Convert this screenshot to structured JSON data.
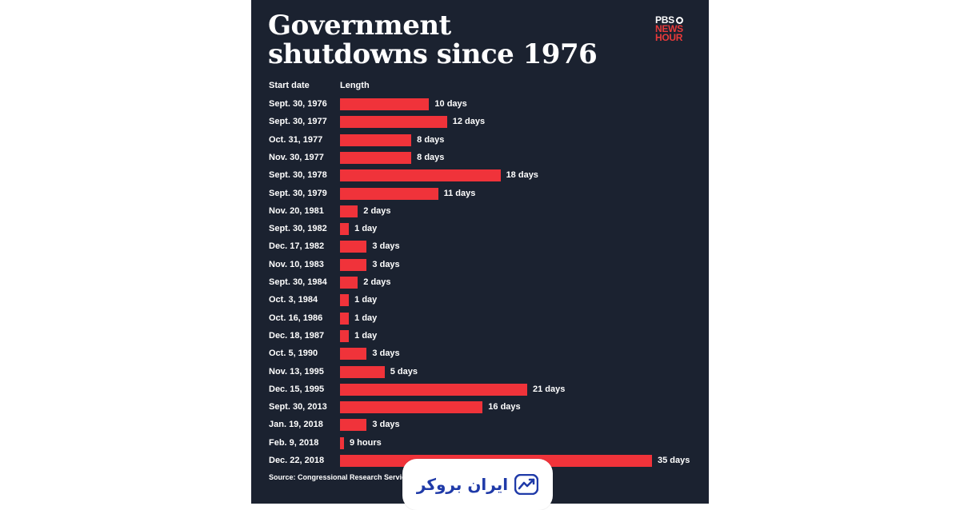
{
  "chart_data": {
    "type": "bar",
    "orientation": "horizontal",
    "title": "Government shutdowns since 1976",
    "column_headers": {
      "category": "Start date",
      "value": "Length"
    },
    "categories": [
      "Sept. 30, 1976",
      "Sept. 30, 1977",
      "Oct. 31, 1977",
      "Nov. 30, 1977",
      "Sept. 30, 1978",
      "Sept. 30, 1979",
      "Nov. 20, 1981",
      "Sept. 30, 1982",
      "Dec. 17, 1982",
      "Nov. 10, 1983",
      "Sept. 30, 1984",
      "Oct. 3, 1984",
      "Oct. 16, 1986",
      "Dec. 18, 1987",
      "Oct. 5, 1990",
      "Nov. 13, 1995",
      "Dec. 15, 1995",
      "Sept. 30, 2013",
      "Jan. 19, 2018",
      "Feb. 9, 2018",
      "Dec. 22, 2018"
    ],
    "values": [
      10,
      12,
      8,
      8,
      18,
      11,
      2,
      1,
      3,
      3,
      2,
      1,
      1,
      1,
      3,
      5,
      21,
      16,
      3,
      0.375,
      35
    ],
    "value_labels": [
      "10 days",
      "12 days",
      "8 days",
      "8 days",
      "18 days",
      "11 days",
      "2 days",
      "1 day",
      "3 days",
      "3 days",
      "2 days",
      "1 day",
      "1 day",
      "1 day",
      "3 days",
      "5 days",
      "21 days",
      "16 days",
      "3 days",
      "9 hours",
      "35 days"
    ],
    "unit": "days",
    "xlim": [
      0,
      35
    ],
    "grid": false,
    "bar_color": "#f0333a",
    "background_color": "#1b2230",
    "source": "Source: Congressional Research Servic"
  },
  "branding": {
    "logo_line1": "PBS",
    "logo_line2": "NEWS",
    "logo_line3": "HOUR",
    "logo_icon": "pbs-head-icon",
    "logo_accent": "#e83a3a",
    "watermark_text": "ایران بروکر",
    "watermark_icon": "trend-chart-icon",
    "watermark_color": "#1f3aa8"
  }
}
